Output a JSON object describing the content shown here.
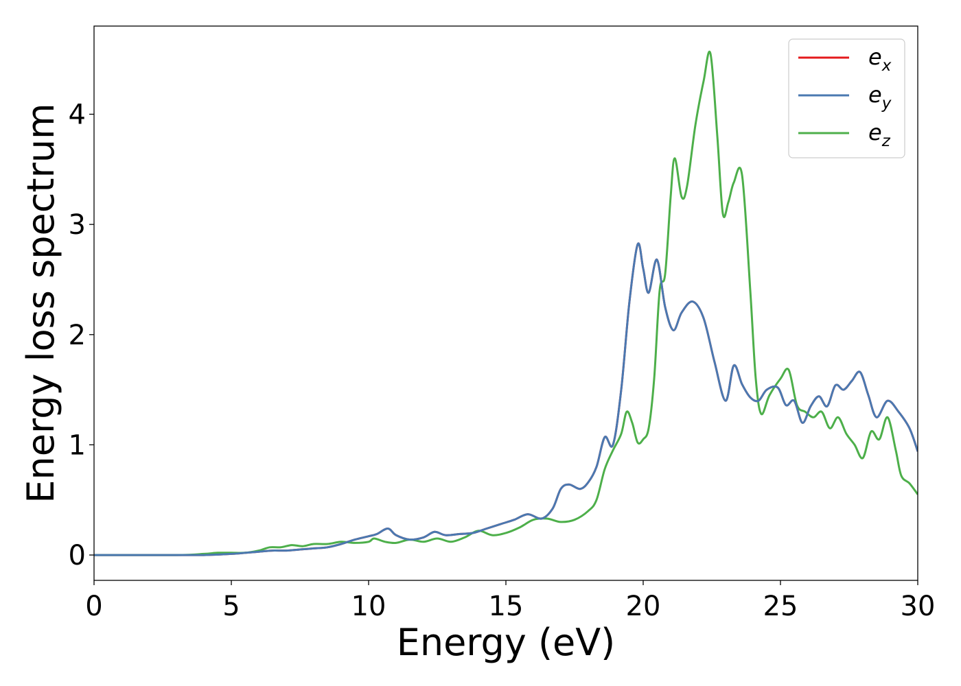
{
  "chart_data": {
    "type": "line",
    "title": "",
    "xlabel": "Energy (eV)",
    "ylabel": "Energy loss spectrum",
    "xlim": [
      0,
      30
    ],
    "ylim": [
      -0.23,
      4.8
    ],
    "xticks": [
      0,
      5,
      10,
      15,
      20,
      25,
      30
    ],
    "yticks": [
      0,
      1,
      2,
      3,
      4
    ],
    "grid": false,
    "legend_position": "top-right",
    "series": [
      {
        "name": "e_x",
        "legend": {
          "base": "e",
          "sub": "x"
        },
        "color": "#e41a1c",
        "x": [
          0,
          3,
          4,
          5,
          6,
          6.5,
          7,
          7.5,
          8,
          8.5,
          9,
          9.5,
          10,
          10.3,
          10.7,
          11,
          11.5,
          12,
          12.4,
          12.8,
          13.3,
          13.8,
          14.3,
          14.8,
          15.3,
          15.8,
          16.3,
          16.7,
          17.0,
          17.3,
          17.7,
          18.0,
          18.3,
          18.6,
          18.9,
          19.2,
          19.5,
          19.8,
          20.0,
          20.2,
          20.5,
          20.8,
          21.1,
          21.4,
          21.8,
          22.2,
          22.6,
          23.0,
          23.3,
          23.6,
          23.9,
          24.2,
          24.5,
          24.9,
          25.2,
          25.5,
          25.8,
          26.1,
          26.4,
          26.7,
          27.0,
          27.3,
          27.6,
          27.9,
          28.2,
          28.5,
          28.9,
          29.3,
          29.7,
          30
        ],
        "y": [
          0,
          0,
          0,
          0.01,
          0.03,
          0.04,
          0.04,
          0.05,
          0.06,
          0.07,
          0.1,
          0.14,
          0.17,
          0.19,
          0.24,
          0.18,
          0.14,
          0.16,
          0.21,
          0.18,
          0.19,
          0.2,
          0.24,
          0.28,
          0.32,
          0.37,
          0.33,
          0.42,
          0.6,
          0.64,
          0.6,
          0.66,
          0.8,
          1.07,
          1.0,
          1.5,
          2.3,
          2.82,
          2.6,
          2.38,
          2.68,
          2.25,
          2.04,
          2.2,
          2.3,
          2.15,
          1.75,
          1.4,
          1.72,
          1.55,
          1.43,
          1.4,
          1.5,
          1.52,
          1.36,
          1.4,
          1.2,
          1.35,
          1.44,
          1.35,
          1.54,
          1.5,
          1.58,
          1.66,
          1.45,
          1.25,
          1.4,
          1.3,
          1.15,
          0.94
        ]
      },
      {
        "name": "e_y",
        "legend": {
          "base": "e",
          "sub": "y"
        },
        "color": "#4a79b1",
        "x": [
          0,
          3,
          4,
          5,
          6,
          6.5,
          7,
          7.5,
          8,
          8.5,
          9,
          9.5,
          10,
          10.3,
          10.7,
          11,
          11.5,
          12,
          12.4,
          12.8,
          13.3,
          13.8,
          14.3,
          14.8,
          15.3,
          15.8,
          16.3,
          16.7,
          17.0,
          17.3,
          17.7,
          18.0,
          18.3,
          18.6,
          18.9,
          19.2,
          19.5,
          19.8,
          20.0,
          20.2,
          20.5,
          20.8,
          21.1,
          21.4,
          21.8,
          22.2,
          22.6,
          23.0,
          23.3,
          23.6,
          23.9,
          24.2,
          24.5,
          24.9,
          25.2,
          25.5,
          25.8,
          26.1,
          26.4,
          26.7,
          27.0,
          27.3,
          27.6,
          27.9,
          28.2,
          28.5,
          28.9,
          29.3,
          29.7,
          30
        ],
        "y": [
          0,
          0,
          0,
          0.01,
          0.03,
          0.04,
          0.04,
          0.05,
          0.06,
          0.07,
          0.1,
          0.14,
          0.17,
          0.19,
          0.24,
          0.18,
          0.14,
          0.16,
          0.21,
          0.18,
          0.19,
          0.2,
          0.24,
          0.28,
          0.32,
          0.37,
          0.33,
          0.42,
          0.6,
          0.64,
          0.6,
          0.66,
          0.8,
          1.07,
          1.0,
          1.5,
          2.3,
          2.82,
          2.6,
          2.38,
          2.68,
          2.25,
          2.04,
          2.2,
          2.3,
          2.15,
          1.75,
          1.4,
          1.72,
          1.55,
          1.43,
          1.4,
          1.5,
          1.52,
          1.36,
          1.4,
          1.2,
          1.35,
          1.44,
          1.35,
          1.54,
          1.5,
          1.58,
          1.66,
          1.45,
          1.25,
          1.4,
          1.3,
          1.15,
          0.94
        ]
      },
      {
        "name": "e_z",
        "legend": {
          "base": "e",
          "sub": "z"
        },
        "color": "#4daf4a",
        "x": [
          0,
          3,
          4,
          4.5,
          5,
          5.5,
          6,
          6.4,
          6.8,
          7.2,
          7.6,
          8,
          8.5,
          9,
          9.5,
          10,
          10.2,
          10.6,
          11,
          11.5,
          12,
          12.5,
          13,
          13.5,
          14,
          14.5,
          15,
          15.5,
          16,
          16.5,
          17,
          17.5,
          18,
          18.3,
          18.6,
          18.9,
          19.2,
          19.4,
          19.6,
          19.8,
          20.0,
          20.2,
          20.4,
          20.6,
          20.8,
          21.0,
          21.15,
          21.4,
          21.6,
          21.9,
          22.2,
          22.45,
          22.7,
          22.9,
          23.1,
          23.3,
          23.6,
          23.9,
          24.1,
          24.3,
          24.6,
          25.0,
          25.3,
          25.6,
          25.9,
          26.2,
          26.5,
          26.8,
          27.1,
          27.4,
          27.7,
          28.0,
          28.3,
          28.6,
          28.9,
          29.2,
          29.4,
          29.7,
          30
        ],
        "y": [
          0,
          0,
          0.01,
          0.02,
          0.02,
          0.02,
          0.04,
          0.07,
          0.07,
          0.09,
          0.08,
          0.1,
          0.1,
          0.12,
          0.11,
          0.12,
          0.15,
          0.12,
          0.11,
          0.14,
          0.12,
          0.15,
          0.12,
          0.16,
          0.22,
          0.18,
          0.2,
          0.25,
          0.32,
          0.33,
          0.3,
          0.32,
          0.4,
          0.5,
          0.78,
          0.95,
          1.1,
          1.3,
          1.2,
          1.02,
          1.05,
          1.15,
          1.6,
          2.4,
          2.55,
          3.25,
          3.6,
          3.25,
          3.35,
          3.9,
          4.3,
          4.55,
          3.8,
          3.1,
          3.2,
          3.38,
          3.45,
          2.4,
          1.6,
          1.28,
          1.45,
          1.6,
          1.68,
          1.36,
          1.3,
          1.25,
          1.3,
          1.15,
          1.25,
          1.1,
          1.0,
          0.88,
          1.12,
          1.05,
          1.25,
          0.95,
          0.72,
          0.65,
          0.55
        ]
      }
    ]
  }
}
